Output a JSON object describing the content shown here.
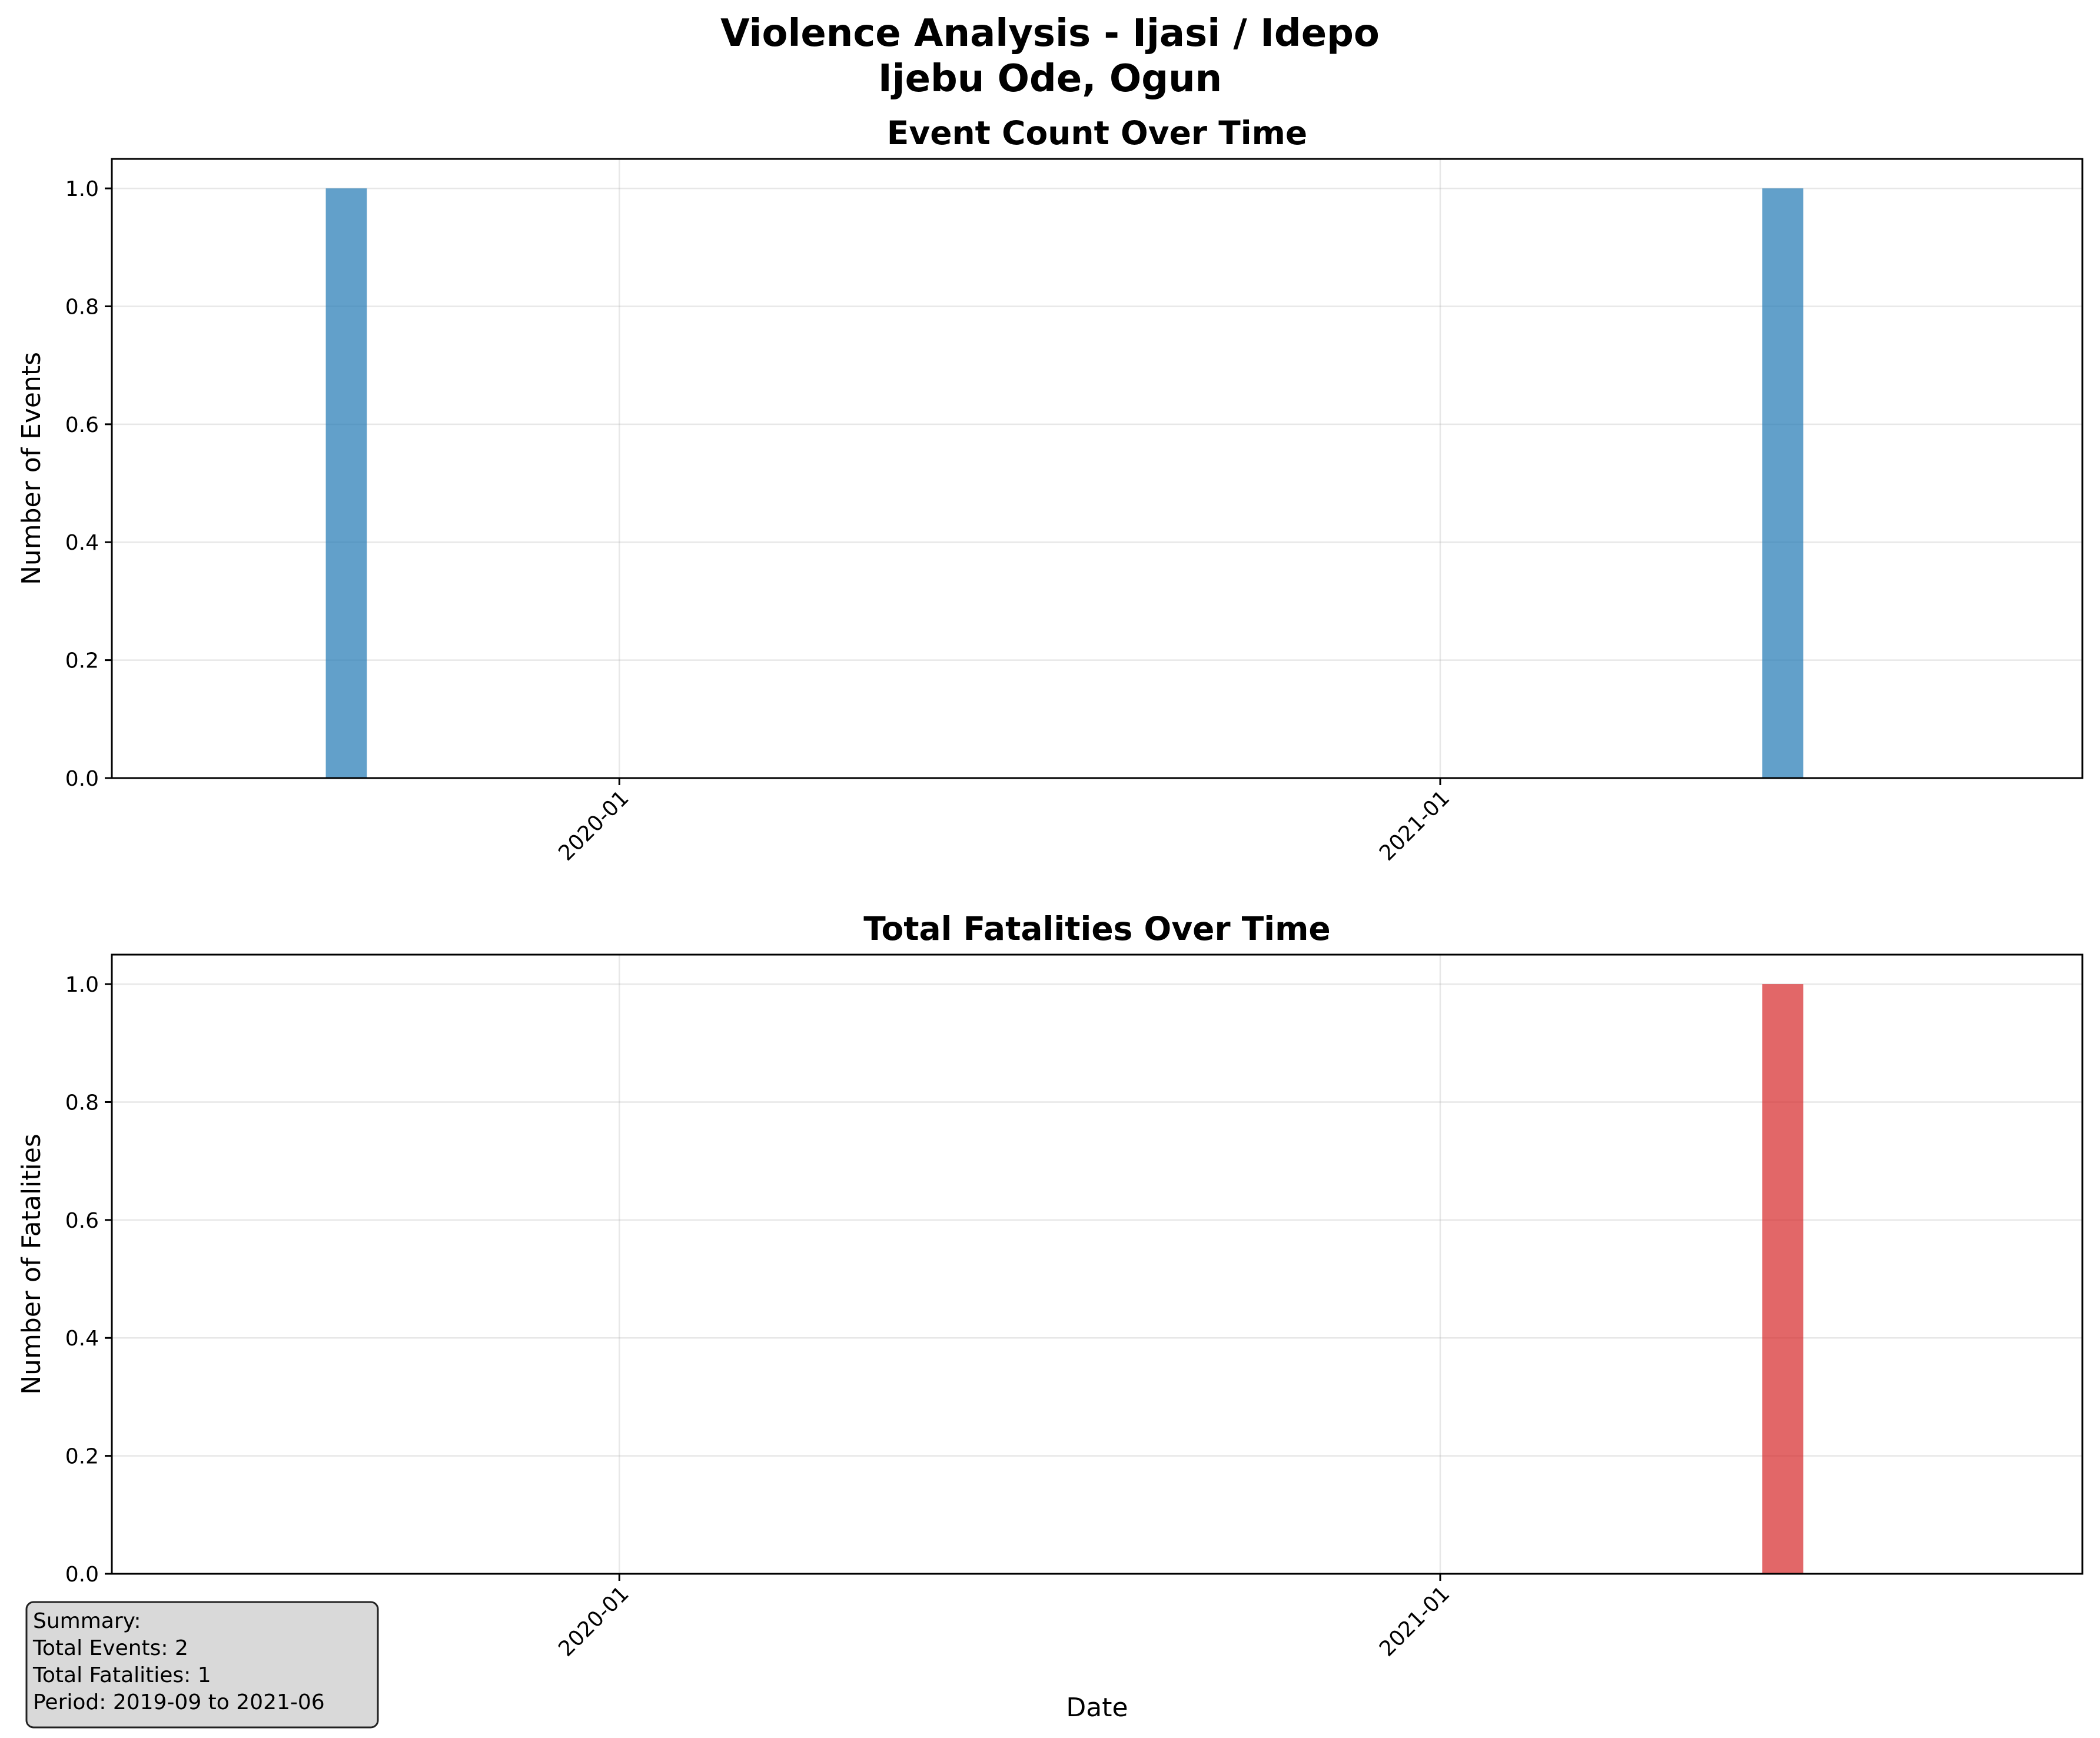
{
  "figure": {
    "title_line1": "Violence Analysis - Ijasi / Idepo",
    "title_line2": "Ijebu Ode, Ogun"
  },
  "chart_data": [
    {
      "type": "bar",
      "title": "Event Count Over Time",
      "xlabel": "",
      "ylabel": "Number of Events",
      "x": [
        "2019-09",
        "2021-06"
      ],
      "values": [
        1,
        1
      ],
      "ylim": [
        0,
        1.05
      ],
      "yticks": [
        "0.0",
        "0.2",
        "0.4",
        "0.6",
        "0.8",
        "1.0"
      ],
      "xticks": [
        "2020-01",
        "2021-01"
      ],
      "color": "#1f77b4",
      "grid": true
    },
    {
      "type": "bar",
      "title": "Total Fatalities Over Time",
      "xlabel": "Date",
      "ylabel": "Number of Fatalities",
      "x": [
        "2021-06"
      ],
      "values": [
        1
      ],
      "ylim": [
        0,
        1.05
      ],
      "yticks": [
        "0.0",
        "0.2",
        "0.4",
        "0.6",
        "0.8",
        "1.0"
      ],
      "xticks": [
        "2020-01",
        "2021-01"
      ],
      "color": "#d62728",
      "grid": true
    }
  ],
  "summary": {
    "heading": "Summary:",
    "total_events": "Total Events: 2",
    "total_fatalities": "Total Fatalities: 1",
    "period": "Period: 2019-09 to 2021-06"
  }
}
